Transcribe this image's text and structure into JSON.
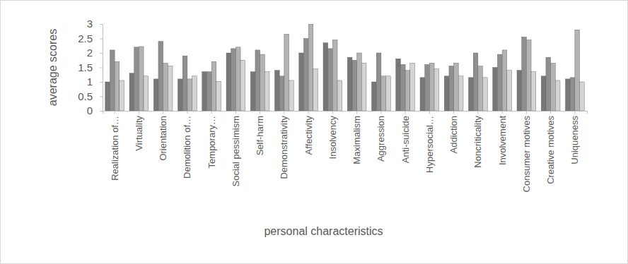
{
  "chart_data": {
    "type": "bar",
    "x_label": "personal characteristics",
    "y_label": "average scores",
    "categories": [
      "Realization of…",
      "Virtuality",
      "Orientation",
      "Demolition of…",
      "Temporary…",
      "Social pessimism",
      "Self-harm",
      "Demonstrativity",
      "Affectivity",
      "Insolvency",
      "Maximalism",
      "Aggression",
      "Anti-suicide",
      "Hypersocial…",
      "Addiction",
      "Noncriticality",
      "Involvement",
      "Consumer motives",
      "Creative motives",
      "Uniqueness"
    ],
    "series": [
      {
        "color": "#777777",
        "values": [
          1.0,
          1.3,
          1.1,
          1.1,
          1.35,
          2.0,
          1.35,
          1.4,
          2.0,
          2.35,
          1.85,
          1.0,
          1.8,
          1.15,
          1.2,
          1.15,
          1.5,
          1.4,
          1.2,
          1.1
        ]
      },
      {
        "color": "#8f8f8f",
        "values": [
          2.1,
          2.2,
          2.4,
          1.9,
          1.35,
          2.15,
          2.1,
          1.2,
          2.5,
          2.15,
          1.75,
          2.0,
          1.6,
          1.6,
          1.55,
          2.0,
          1.95,
          2.55,
          1.85,
          1.15
        ]
      },
      {
        "color": "#b3b3b3",
        "values": [
          1.7,
          2.22,
          1.65,
          1.1,
          1.7,
          2.2,
          1.95,
          2.65,
          3.0,
          2.45,
          2.0,
          1.2,
          1.4,
          1.65,
          1.65,
          1.55,
          2.1,
          2.45,
          1.65,
          2.8
        ]
      },
      {
        "color": "#d4d4d4",
        "values": [
          1.05,
          1.2,
          1.55,
          1.2,
          1.02,
          1.75,
          1.35,
          1.05,
          1.45,
          1.05,
          1.65,
          1.2,
          1.65,
          1.45,
          1.2,
          1.15,
          1.4,
          1.35,
          1.05,
          1.0
        ]
      }
    ],
    "ylim": [
      0,
      3
    ],
    "yticks": [
      0,
      0.5,
      1,
      1.5,
      2,
      2.5,
      3
    ],
    "grid": false
  }
}
